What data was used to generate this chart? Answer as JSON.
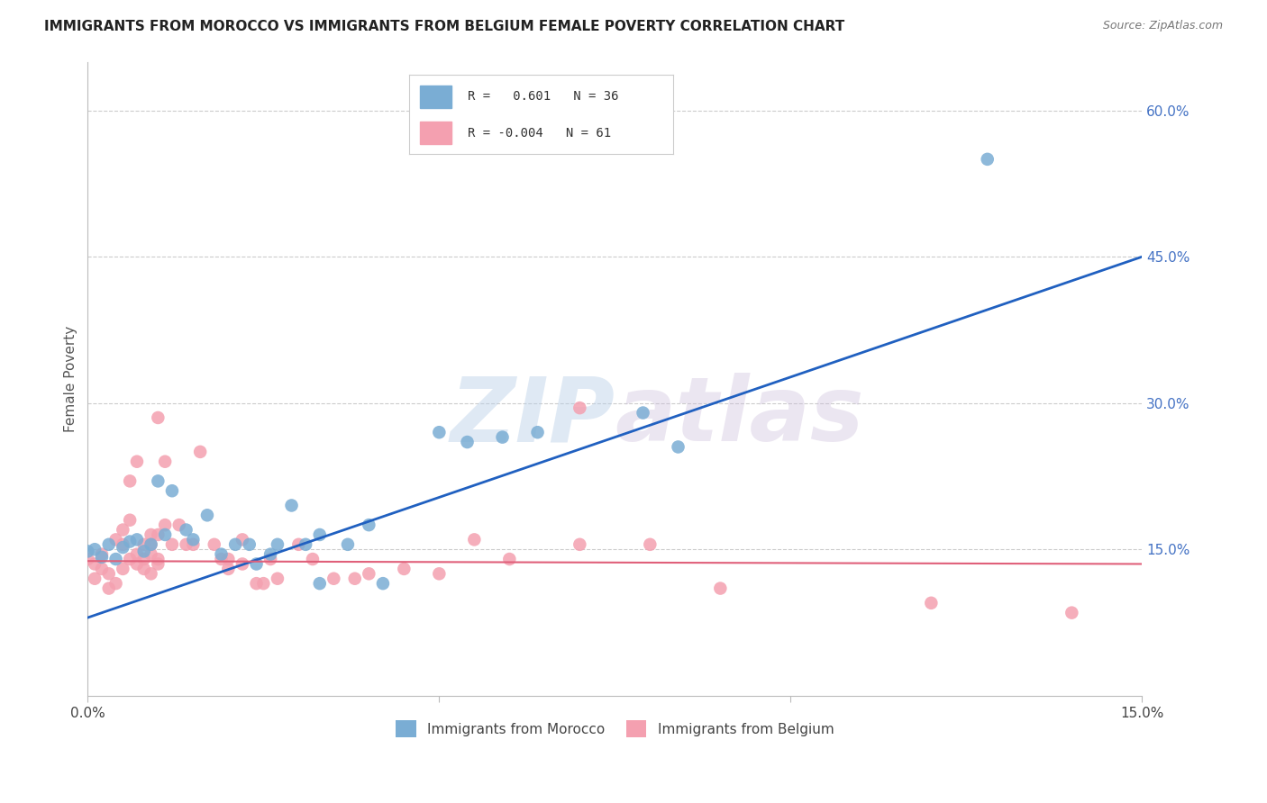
{
  "title": "IMMIGRANTS FROM MOROCCO VS IMMIGRANTS FROM BELGIUM FEMALE POVERTY CORRELATION CHART",
  "source": "Source: ZipAtlas.com",
  "ylabel": "Female Poverty",
  "right_yticks": [
    "60.0%",
    "45.0%",
    "30.0%",
    "15.0%"
  ],
  "right_ytick_vals": [
    0.6,
    0.45,
    0.3,
    0.15
  ],
  "xlim": [
    0.0,
    0.15
  ],
  "ylim": [
    0.0,
    0.65
  ],
  "morocco_R": 0.601,
  "morocco_N": 36,
  "belgium_R": -0.004,
  "belgium_N": 61,
  "morocco_color": "#7aadd4",
  "belgium_color": "#f4a0b0",
  "morocco_line_color": "#2060c0",
  "belgium_line_color": "#e0607a",
  "watermark_zip": "ZIP",
  "watermark_atlas": "atlas",
  "morocco_line": [
    0.0,
    0.08,
    0.15,
    0.45
  ],
  "belgium_line": [
    0.0,
    0.138,
    0.15,
    0.135
  ],
  "morocco_points": [
    [
      0.0,
      0.148
    ],
    [
      0.001,
      0.15
    ],
    [
      0.002,
      0.142
    ],
    [
      0.003,
      0.155
    ],
    [
      0.004,
      0.14
    ],
    [
      0.005,
      0.152
    ],
    [
      0.006,
      0.158
    ],
    [
      0.007,
      0.16
    ],
    [
      0.008,
      0.148
    ],
    [
      0.009,
      0.155
    ],
    [
      0.01,
      0.22
    ],
    [
      0.011,
      0.165
    ],
    [
      0.012,
      0.21
    ],
    [
      0.014,
      0.17
    ],
    [
      0.015,
      0.16
    ],
    [
      0.017,
      0.185
    ],
    [
      0.019,
      0.145
    ],
    [
      0.021,
      0.155
    ],
    [
      0.023,
      0.155
    ],
    [
      0.024,
      0.135
    ],
    [
      0.026,
      0.145
    ],
    [
      0.027,
      0.155
    ],
    [
      0.029,
      0.195
    ],
    [
      0.031,
      0.155
    ],
    [
      0.033,
      0.165
    ],
    [
      0.037,
      0.155
    ],
    [
      0.04,
      0.175
    ],
    [
      0.042,
      0.115
    ],
    [
      0.05,
      0.27
    ],
    [
      0.054,
      0.26
    ],
    [
      0.059,
      0.265
    ],
    [
      0.064,
      0.27
    ],
    [
      0.079,
      0.29
    ],
    [
      0.084,
      0.255
    ],
    [
      0.128,
      0.55
    ],
    [
      0.033,
      0.115
    ]
  ],
  "belgium_points": [
    [
      0.0,
      0.14
    ],
    [
      0.001,
      0.135
    ],
    [
      0.001,
      0.12
    ],
    [
      0.002,
      0.13
    ],
    [
      0.002,
      0.145
    ],
    [
      0.003,
      0.11
    ],
    [
      0.003,
      0.125
    ],
    [
      0.004,
      0.115
    ],
    [
      0.004,
      0.16
    ],
    [
      0.005,
      0.17
    ],
    [
      0.005,
      0.13
    ],
    [
      0.005,
      0.155
    ],
    [
      0.006,
      0.22
    ],
    [
      0.006,
      0.14
    ],
    [
      0.006,
      0.18
    ],
    [
      0.007,
      0.145
    ],
    [
      0.007,
      0.135
    ],
    [
      0.007,
      0.24
    ],
    [
      0.008,
      0.155
    ],
    [
      0.008,
      0.14
    ],
    [
      0.008,
      0.13
    ],
    [
      0.009,
      0.165
    ],
    [
      0.009,
      0.145
    ],
    [
      0.009,
      0.155
    ],
    [
      0.009,
      0.125
    ],
    [
      0.01,
      0.135
    ],
    [
      0.01,
      0.285
    ],
    [
      0.01,
      0.165
    ],
    [
      0.01,
      0.14
    ],
    [
      0.011,
      0.175
    ],
    [
      0.011,
      0.24
    ],
    [
      0.012,
      0.155
    ],
    [
      0.013,
      0.175
    ],
    [
      0.014,
      0.155
    ],
    [
      0.015,
      0.155
    ],
    [
      0.016,
      0.25
    ],
    [
      0.018,
      0.155
    ],
    [
      0.019,
      0.14
    ],
    [
      0.02,
      0.14
    ],
    [
      0.02,
      0.13
    ],
    [
      0.022,
      0.135
    ],
    [
      0.022,
      0.16
    ],
    [
      0.024,
      0.115
    ],
    [
      0.025,
      0.115
    ],
    [
      0.026,
      0.14
    ],
    [
      0.027,
      0.12
    ],
    [
      0.03,
      0.155
    ],
    [
      0.032,
      0.14
    ],
    [
      0.035,
      0.12
    ],
    [
      0.038,
      0.12
    ],
    [
      0.04,
      0.125
    ],
    [
      0.045,
      0.13
    ],
    [
      0.05,
      0.125
    ],
    [
      0.055,
      0.16
    ],
    [
      0.06,
      0.14
    ],
    [
      0.07,
      0.155
    ],
    [
      0.07,
      0.295
    ],
    [
      0.08,
      0.155
    ],
    [
      0.09,
      0.11
    ],
    [
      0.12,
      0.095
    ],
    [
      0.14,
      0.085
    ]
  ]
}
